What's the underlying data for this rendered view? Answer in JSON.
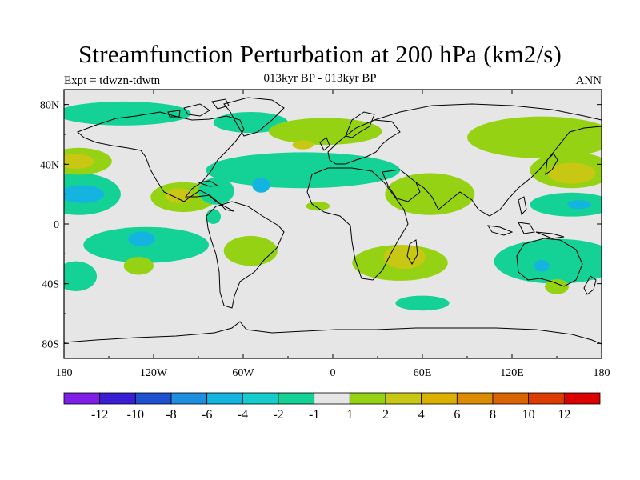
{
  "title": "Streamfunction Perturbation at 200 hPa (km2/s)",
  "subtitle": "013kyr BP - 013kyr BP",
  "left_label": "Expt = tdwzn-tdwtn",
  "right_label": "ANN",
  "chart_data": {
    "type": "heatmap",
    "projection": "cylindrical equidistant",
    "x_ticks": [
      "180",
      "120W",
      "60W",
      "0",
      "60E",
      "120E",
      "180"
    ],
    "x_tick_values": [
      -180,
      -120,
      -60,
      0,
      60,
      120,
      180
    ],
    "y_ticks": [
      "80N",
      "40N",
      "0",
      "40S",
      "80S"
    ],
    "y_tick_values": [
      80,
      40,
      0,
      -40,
      -80
    ],
    "xlim": [
      -180,
      180
    ],
    "ylim": [
      -90,
      90
    ],
    "colorbar": {
      "labels": [
        "-12",
        "-10",
        "-8",
        "-6",
        "-4",
        "-2",
        "-1",
        "1",
        "2",
        "4",
        "6",
        "8",
        "10",
        "12"
      ],
      "colors": [
        "#7f1ee6",
        "#3a1ed6",
        "#1e50d0",
        "#1e8ee0",
        "#14b4e0",
        "#14cccc",
        "#14d296",
        "#e6e6e6",
        "#96d214",
        "#c8c814",
        "#dcb000",
        "#dc8c00",
        "#dc6400",
        "#dc3c00",
        "#dc0000"
      ]
    },
    "contour_regions": [
      {
        "name": "sw-pacific-neg",
        "level": "-2",
        "lon": -170,
        "lat": 20,
        "rx": 28,
        "ry": 14
      },
      {
        "name": "sw-pacific-core",
        "level": "-4",
        "lon": -168,
        "lat": 20,
        "rx": 15,
        "ry": 6
      },
      {
        "name": "nw-pacific-pos",
        "level": "1",
        "lon": -170,
        "lat": 42,
        "rx": 22,
        "ry": 9
      },
      {
        "name": "nw-pacific-core",
        "level": "2",
        "lon": -172,
        "lat": 42,
        "rx": 12,
        "ry": 5
      },
      {
        "name": "arctic-pac-neg",
        "level": "-2",
        "lon": -140,
        "lat": 74,
        "rx": 45,
        "ry": 8
      },
      {
        "name": "central-pac-neg",
        "level": "-2",
        "lon": -125,
        "lat": -14,
        "rx": 42,
        "ry": 12
      },
      {
        "name": "central-pac-core",
        "level": "-4",
        "lon": -128,
        "lat": -10,
        "rx": 9,
        "ry": 5
      },
      {
        "name": "s-pac-pos",
        "level": "1",
        "lon": -130,
        "lat": -28,
        "rx": 10,
        "ry": 6
      },
      {
        "name": "se-pac-neg",
        "level": "-2",
        "lon": -172,
        "lat": -35,
        "rx": 14,
        "ry": 10
      },
      {
        "name": "mexico-pos",
        "level": "1",
        "lon": -100,
        "lat": 18,
        "rx": 22,
        "ry": 10
      },
      {
        "name": "mexico-core",
        "level": "2",
        "lon": -103,
        "lat": 19,
        "rx": 9,
        "ry": 5
      },
      {
        "name": "caribbean-neg",
        "level": "-2",
        "lon": -78,
        "lat": 22,
        "rx": 12,
        "ry": 9
      },
      {
        "name": "s-america-neg",
        "level": "-2",
        "lon": -80,
        "lat": 5,
        "rx": 5,
        "ry": 5
      },
      {
        "name": "s-atlantic-pos",
        "level": "1",
        "lon": -55,
        "lat": -18,
        "rx": 18,
        "ry": 10
      },
      {
        "name": "n-atlantic-neg",
        "level": "-2",
        "lon": -20,
        "lat": 36,
        "rx": 65,
        "ry": 12
      },
      {
        "name": "n-atlantic-core",
        "level": "-4",
        "lon": -48,
        "lat": 26,
        "rx": 6,
        "ry": 5
      },
      {
        "name": "greenland-neg",
        "level": "-2",
        "lon": -55,
        "lat": 68,
        "rx": 25,
        "ry": 7
      },
      {
        "name": "arctic-pos",
        "level": "1",
        "lon": -5,
        "lat": 62,
        "rx": 38,
        "ry": 9
      },
      {
        "name": "arctic-core",
        "level": "2",
        "lon": -20,
        "lat": 53,
        "rx": 7,
        "ry": 3
      },
      {
        "name": "w-africa-pos",
        "level": "1",
        "lon": -10,
        "lat": 12,
        "rx": 8,
        "ry": 3
      },
      {
        "name": "india-pos",
        "level": "1",
        "lon": 65,
        "lat": 20,
        "rx": 30,
        "ry": 14
      },
      {
        "name": "s-africa-pos",
        "level": "1",
        "lon": 45,
        "lat": -26,
        "rx": 32,
        "ry": 12
      },
      {
        "name": "s-africa-core",
        "level": "2",
        "lon": 48,
        "lat": -22,
        "rx": 14,
        "ry": 8
      },
      {
        "name": "s-ocean-neg",
        "level": "-2",
        "lon": 60,
        "lat": -53,
        "rx": 18,
        "ry": 5
      },
      {
        "name": "nw-pac-e-pos",
        "level": "1",
        "lon": 140,
        "lat": 58,
        "rx": 50,
        "ry": 14
      },
      {
        "name": "japan-pos",
        "level": "1",
        "lon": 160,
        "lat": 36,
        "rx": 28,
        "ry": 12
      },
      {
        "name": "japan-core",
        "level": "2",
        "lon": 160,
        "lat": 34,
        "rx": 16,
        "ry": 7
      },
      {
        "name": "w-pac-neg",
        "level": "-2",
        "lon": 160,
        "lat": 13,
        "rx": 28,
        "ry": 8
      },
      {
        "name": "w-pac-core",
        "level": "-4",
        "lon": 165,
        "lat": 13,
        "rx": 8,
        "ry": 3
      },
      {
        "name": "australia-neg",
        "level": "-2",
        "lon": 150,
        "lat": -25,
        "rx": 42,
        "ry": 15
      },
      {
        "name": "australia-core",
        "level": "-4",
        "lon": 140,
        "lat": -28,
        "rx": 5,
        "ry": 4
      },
      {
        "name": "far-s-pac-pos",
        "level": "1",
        "lon": 150,
        "lat": -42,
        "rx": 8,
        "ry": 5
      }
    ]
  }
}
